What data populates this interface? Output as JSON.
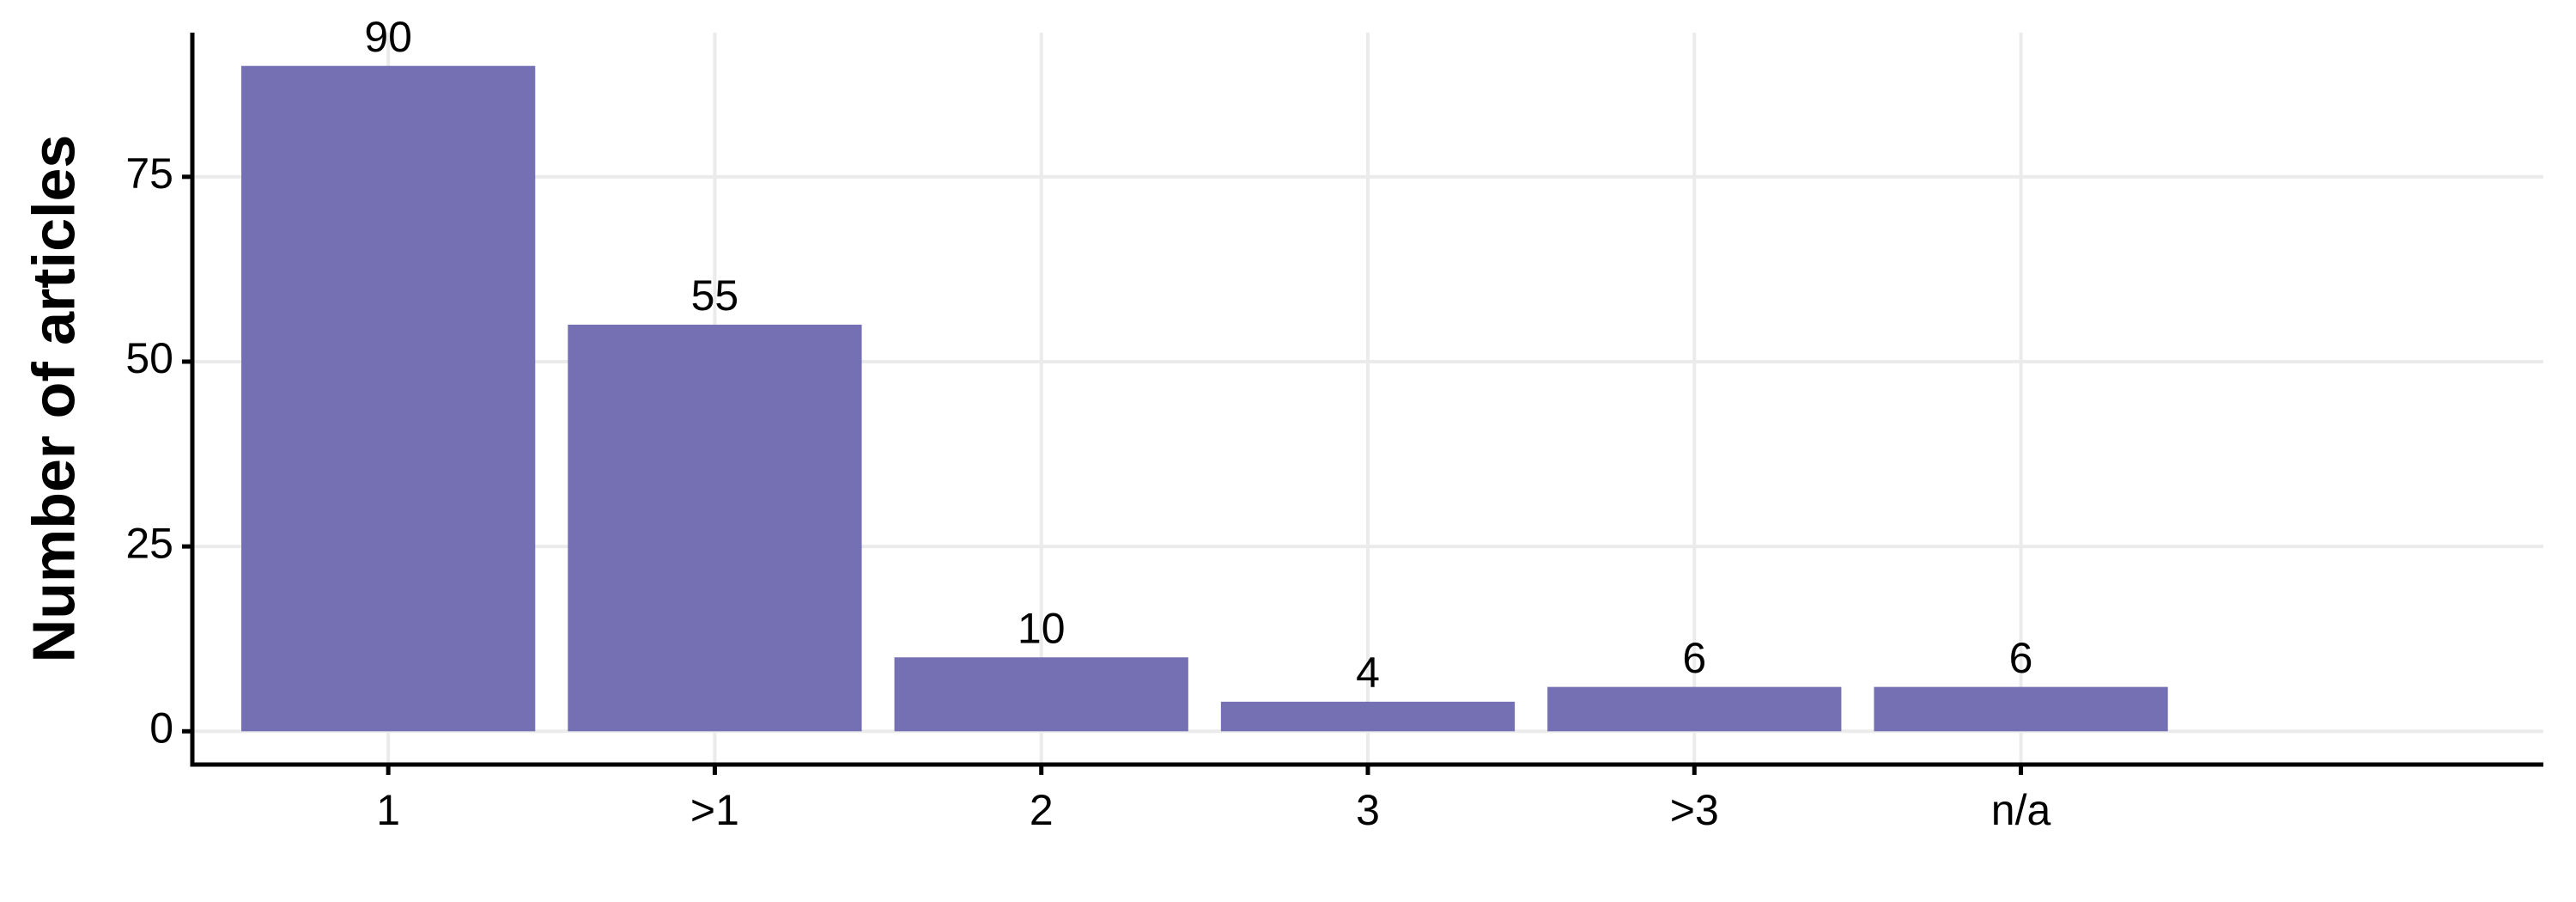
{
  "chart_data": {
    "type": "bar",
    "y_label": "Number of articles",
    "categories": [
      "1",
      ">1",
      "2",
      "3",
      ">3",
      "n/a"
    ],
    "values": [
      90,
      55,
      10,
      4,
      6,
      6
    ],
    "color": "#7570b3",
    "ylim": [
      -4.5,
      94.5
    ],
    "yticks": [
      0,
      25,
      50,
      75
    ],
    "grid": true
  }
}
